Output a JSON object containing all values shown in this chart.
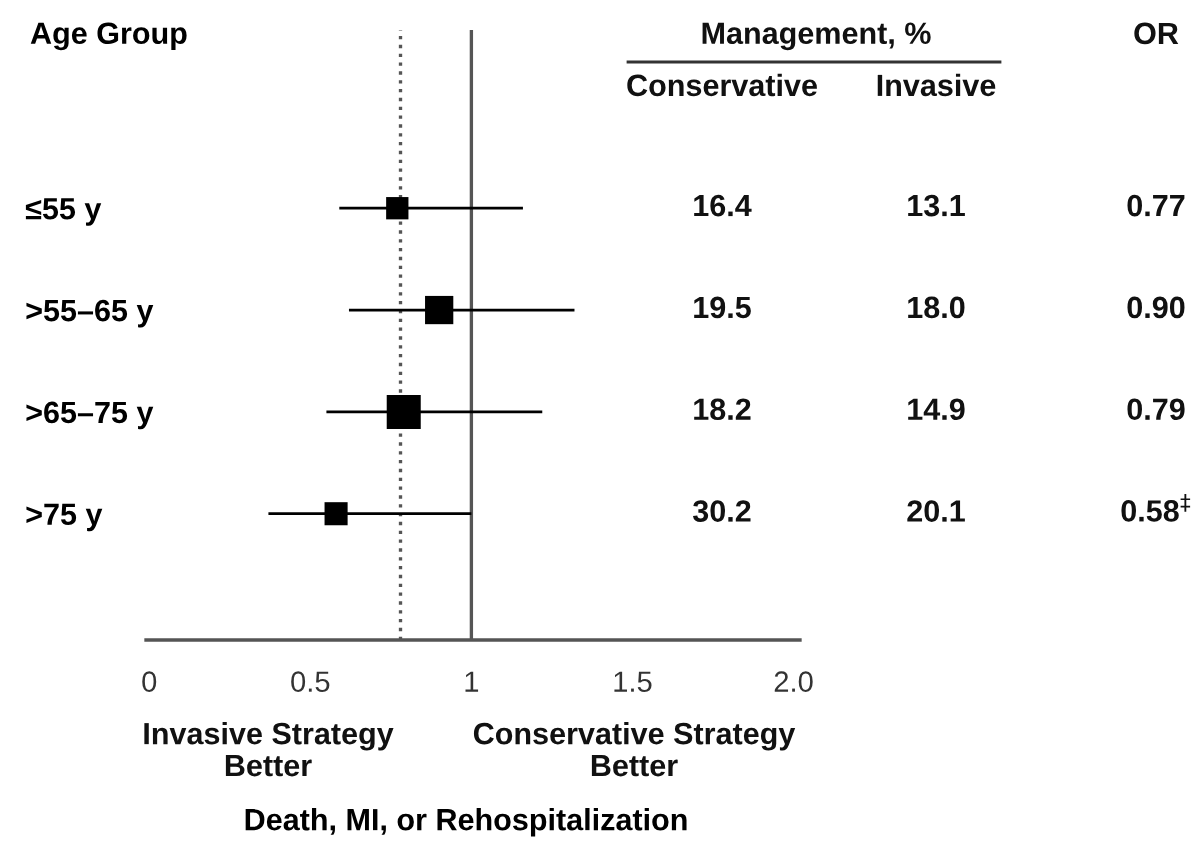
{
  "chart_data": {
    "type": "bubble",
    "orientation": "horizontal",
    "marker": "square",
    "color": "#000000",
    "categories": [
      "≤55 y",
      ">55–65 y",
      ">65–75 y",
      ">75 y"
    ],
    "values": [
      0.77,
      0.9,
      0.79,
      0.58
    ],
    "errors": [
      [
        0.59,
        1.16
      ],
      [
        0.62,
        1.32
      ],
      [
        0.55,
        1.22
      ],
      [
        0.37,
        1.0
      ]
    ],
    "sizes": [
      0.43,
      0.69,
      1,
      0.46
    ],
    "value_labels": [
      "0.77",
      "0.90",
      "0.79",
      "0.58$^{‡}$"
    ],
    "xlim": [
      -0.01,
      2.02
    ],
    "xticks": [
      0,
      0.5,
      1,
      1.5,
      {
        "value": 2,
        "label": "2.0"
      }
    ],
    "xlabel": "Death, MI, or Rehospitalization",
    "ylabel": "Age Group",
    "ref_lines": [
      {
        "axis": "x",
        "value": 1,
        "color": "#555555",
        "line_style": "solid"
      },
      {
        "axis": "x",
        "value": 0.78,
        "color": "#555555",
        "line_style": "dotted"
      }
    ],
    "annotations": [
      "Management, %",
      "Conservative",
      "Invasive",
      "OR",
      "16.4",
      "13.1",
      "19.5",
      "18.0",
      "18.2",
      "14.9",
      "30.2",
      "20.1",
      "Invasive Strategy\nBetter",
      "Conservative Strategy\nBetter"
    ]
  }
}
